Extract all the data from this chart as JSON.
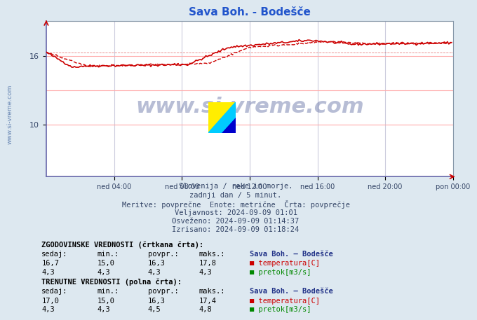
{
  "title": "Sava Boh. - Bodešče",
  "title_color": "#2255cc",
  "bg_color": "#dde8f0",
  "plot_bg_color": "#ffffff",
  "xlabel_ticks": [
    "ned 04:00",
    "ned 08:00",
    "ned 12:00",
    "ned 16:00",
    "ned 20:00",
    "pon 00:00"
  ],
  "yticks": [
    10,
    16
  ],
  "ylim": [
    5.5,
    19.0
  ],
  "xlim_pts": 288,
  "grid_color_h": "#ffaaaa",
  "grid_color_v": "#ccccdd",
  "temp_color": "#cc0000",
  "flow_color": "#008800",
  "text_color_dark": "#334466",
  "text_color_mid": "#2255aa",
  "watermark": "www.si-vreme.com",
  "left_label": "www.si-vreme.com",
  "subtitle_lines": [
    "Slovenija / reke in morje.",
    "zadnji dan / 5 minut.",
    "Meritve: povprečne  Enote: metrične  Črta: povprečje",
    "Veljavnost: 2024-09-09 01:01",
    "Osveženo: 2024-09-09 01:14:37",
    "Izrisano: 2024-09-09 01:18:24"
  ],
  "hist_header": "ZGODOVINSKE VREDNOSTI (črtkana črta):",
  "curr_header": "TRENUTNE VREDNOSTI (polna črta):",
  "col_headers": [
    "sedaj:",
    "min.:",
    "povpr.:",
    "maks.:"
  ],
  "station_name": "Sava Boh. – Bodešče",
  "hist_temp": [
    16.7,
    15.0,
    16.3,
    17.8
  ],
  "hist_flow": [
    4.3,
    4.3,
    4.3,
    4.3
  ],
  "curr_temp": [
    17.0,
    15.0,
    16.3,
    17.4
  ],
  "curr_flow": [
    4.3,
    4.3,
    4.5,
    4.8
  ],
  "series_labels": [
    "temperatura[C]",
    "pretok[m3/s]"
  ],
  "avg_temp": 16.3,
  "avg_flow": 4.3
}
